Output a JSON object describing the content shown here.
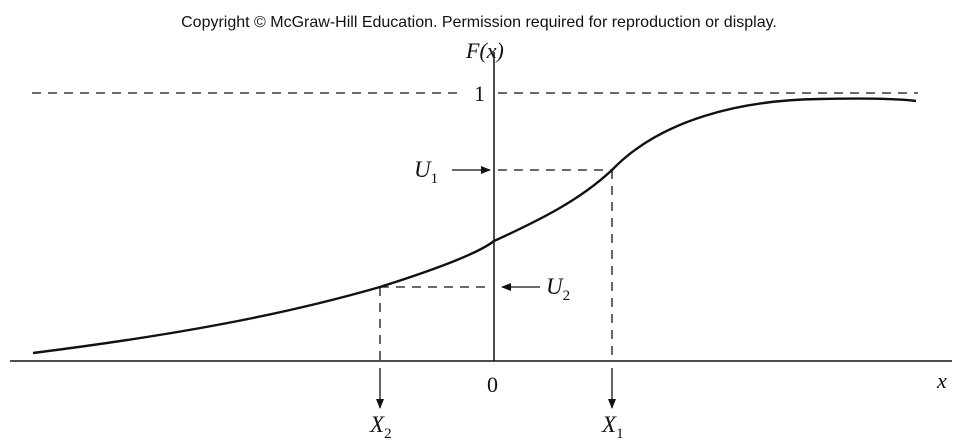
{
  "copyright": "Copyright © McGraw-Hill Education. Permission required for reproduction or display.",
  "labels": {
    "y_axis": "F(x)",
    "x_axis": "x",
    "one": "1",
    "zero": "0",
    "u1_main": "U",
    "u1_sub": "1",
    "u2_main": "U",
    "u2_sub": "2",
    "x1_main": "X",
    "x1_sub": "1",
    "x2_main": "X",
    "x2_sub": "2"
  }
}
